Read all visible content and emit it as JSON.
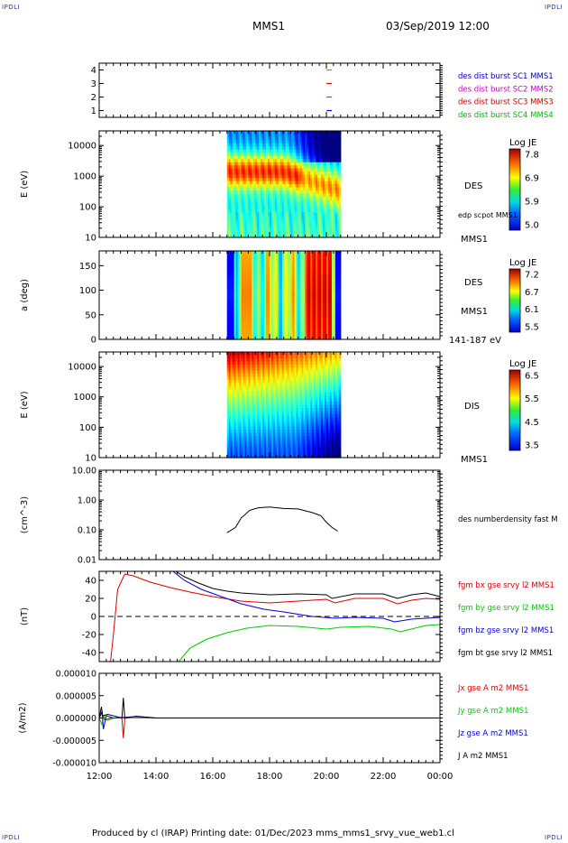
{
  "corners": [
    "IPDLI",
    "IPDLI",
    "IPDLI",
    "IPDLI"
  ],
  "header": {
    "mission": "MMS1",
    "datetime": "03/Sep/2019 12:00"
  },
  "footer": {
    "text": "Produced by cl (IRAP)   Printing date: 01/Dec/2023   mms_mms1_srvy_vue_web1.cl"
  },
  "time_axis": {
    "labels": [
      "12:00",
      "14:00",
      "16:00",
      "18:00",
      "20:00",
      "22:00",
      "00:00"
    ],
    "start_hour": 12,
    "end_hour": 24
  },
  "chart_data": [
    {
      "type": "scatter",
      "panel": "burst",
      "ylim": [
        0.5,
        4.5
      ],
      "yticks": [
        "1",
        "2",
        "3",
        "4"
      ],
      "markers": [
        {
          "hour": 20.1,
          "y": 4,
          "color": "#00cc00"
        },
        {
          "hour": 20.1,
          "y": 3,
          "color": "#dd0000"
        },
        {
          "hour": 20.1,
          "y": 2,
          "color": "#dd00dd"
        },
        {
          "hour": 20.1,
          "y": 1,
          "color": "#0000dd"
        }
      ],
      "legend": [
        {
          "text": "des dist burst SC1 MMS1",
          "color": "#0000cc"
        },
        {
          "text": "des dist burst SC2 MMS2",
          "color": "#cc00cc"
        },
        {
          "text": "des dist burst SC3 MMS3",
          "color": "#cc0000"
        },
        {
          "text": "des dist burst SC4 MMS4",
          "color": "#00bb00"
        }
      ]
    },
    {
      "type": "heatmap",
      "panel": "des_energy",
      "ylabel": "E (eV)",
      "scale": "log",
      "ylim": [
        10,
        30000
      ],
      "yticks": [
        "10",
        "100",
        "1000",
        "10000"
      ],
      "data_range_hours": [
        16.5,
        20.5
      ],
      "colorbar": {
        "title": "Log JE",
        "ticks": [
          "7.8",
          "6.9",
          "5.9",
          "5.0"
        ]
      },
      "labels": [
        "DES",
        "edp scpot MMS1",
        "MMS1"
      ]
    },
    {
      "type": "heatmap",
      "panel": "des_pitch",
      "ylabel": "a (deg)",
      "ylim": [
        0,
        180
      ],
      "yticks": [
        "0",
        "50",
        "100",
        "150"
      ],
      "data_range_hours": [
        16.5,
        20.5
      ],
      "colorbar": {
        "title": "Log JE",
        "ticks": [
          "7.2",
          "6.7",
          "6.1",
          "5.5"
        ]
      },
      "labels": [
        "DES",
        "MMS1",
        "141-187 eV"
      ]
    },
    {
      "type": "heatmap",
      "panel": "dis_energy",
      "ylabel": "E (eV)",
      "scale": "log",
      "ylim": [
        10,
        30000
      ],
      "yticks": [
        "10",
        "100",
        "1000",
        "10000"
      ],
      "data_range_hours": [
        16.5,
        20.5
      ],
      "colorbar": {
        "title": "Log JE",
        "ticks": [
          "6.5",
          "5.5",
          "4.5",
          "3.5"
        ]
      },
      "labels": [
        "DIS",
        "MMS1"
      ]
    },
    {
      "type": "line",
      "panel": "density",
      "ylabel": "(cm^-3)",
      "scale": "log",
      "ylim": [
        0.01,
        10
      ],
      "yticks": [
        "0.01",
        "0.10",
        "1.00",
        "10.00"
      ],
      "series": [
        {
          "name": "des numberdensity fast M",
          "color": "#000000",
          "x": [
            16.5,
            16.8,
            17.0,
            17.3,
            17.6,
            18.0,
            18.5,
            19.0,
            19.5,
            19.8,
            20.0,
            20.2,
            20.4
          ],
          "y": [
            0.08,
            0.12,
            0.25,
            0.45,
            0.55,
            0.58,
            0.52,
            0.5,
            0.38,
            0.3,
            0.18,
            0.12,
            0.09
          ]
        }
      ]
    },
    {
      "type": "line",
      "panel": "bfield",
      "ylabel": "(nT)",
      "ylim": [
        -50,
        50
      ],
      "yticks": [
        "-40",
        "-20",
        "0",
        "20",
        "40"
      ],
      "series": [
        {
          "name": "fgm bx gse srvy l2 MMS1",
          "color": "#dd0000",
          "x": [
            12.4,
            12.5,
            12.65,
            12.9,
            13.2,
            13.8,
            14.5,
            15.2,
            16.0,
            17.0,
            18.0,
            19.0,
            20.0,
            20.3,
            21.0,
            22.0,
            22.5,
            23.0,
            23.5,
            24.0
          ],
          "y": [
            -50,
            -20,
            30,
            47,
            45,
            38,
            32,
            27,
            22,
            17,
            15,
            17,
            19,
            15,
            20,
            20,
            14,
            18,
            20,
            19
          ]
        },
        {
          "name": "fgm by gse srvy l2 MMS1",
          "color": "#00cc00",
          "x": [
            14.8,
            15.2,
            15.8,
            16.5,
            17.2,
            18.0,
            19.0,
            20.0,
            20.5,
            21.5,
            22.3,
            22.6,
            23.5,
            24.0
          ],
          "y": [
            -50,
            -35,
            -25,
            -18,
            -13,
            -10,
            -11,
            -14,
            -12,
            -11,
            -14,
            -17,
            -10,
            -9
          ]
        },
        {
          "name": "fgm bz gse srvy l2 MMS1",
          "color": "#0000dd",
          "x": [
            14.6,
            15.0,
            15.6,
            16.3,
            17.0,
            17.8,
            18.5,
            19.5,
            20.3,
            21.0,
            22.0,
            22.4,
            23.0,
            24.0
          ],
          "y": [
            50,
            40,
            30,
            22,
            14,
            8,
            5,
            0,
            -2,
            -1,
            -2,
            -6,
            -3,
            -1
          ]
        },
        {
          "name": "fgm bt gse srvy l2 MMS1",
          "color": "#000000",
          "x": [
            14.7,
            15.0,
            15.5,
            16.0,
            16.5,
            17.0,
            17.5,
            18.0,
            19.0,
            20.0,
            20.2,
            21.0,
            22.0,
            22.5,
            23.0,
            23.5,
            24.0
          ],
          "y": [
            50,
            44,
            37,
            31,
            28,
            26,
            25,
            24,
            25,
            24,
            20,
            25,
            25,
            20,
            24,
            26,
            22
          ]
        }
      ]
    },
    {
      "type": "line",
      "panel": "current",
      "ylabel": "(A/m2)",
      "ylim": [
        -1e-05,
        1e-05
      ],
      "yticks": [
        "-0.000010",
        "-0.000005",
        "0.000000",
        "0.000005",
        "0.000010"
      ],
      "series": [
        {
          "name": "Jx gse A m2 MMS1",
          "color": "#dd0000",
          "x": [
            12.0,
            12.1,
            12.2,
            12.4,
            12.8,
            12.85,
            12.9,
            13.3,
            14.0,
            24.0
          ],
          "y": [
            0,
            1e-06,
            -5e-07,
            0,
            0,
            -4.5e-06,
            0,
            0,
            0,
            0
          ]
        },
        {
          "name": "Jy gse A m2 MMS1",
          "color": "#00cc00",
          "x": [
            12.0,
            12.1,
            12.15,
            12.3,
            12.5,
            14.0,
            24.0
          ],
          "y": [
            0,
            -1.5e-06,
            5e-07,
            -5e-07,
            0,
            0,
            0
          ]
        },
        {
          "name": "Jz gse A m2 MMS1",
          "color": "#0000dd",
          "x": [
            12.0,
            12.1,
            12.15,
            12.25,
            12.5,
            13.3,
            14.0,
            24.0
          ],
          "y": [
            0,
            1.5e-06,
            -2.5e-06,
            5e-07,
            0,
            3e-07,
            0,
            0
          ]
        },
        {
          "name": "J A m2 MMS1",
          "color": "#000000",
          "x": [
            12.0,
            12.08,
            12.12,
            12.3,
            12.8,
            12.85,
            12.9,
            13.3,
            14.0,
            24.0
          ],
          "y": [
            0,
            2.5e-06,
            5e-07,
            8e-07,
            0,
            4.5e-06,
            0,
            4e-07,
            0,
            0
          ]
        }
      ]
    }
  ]
}
